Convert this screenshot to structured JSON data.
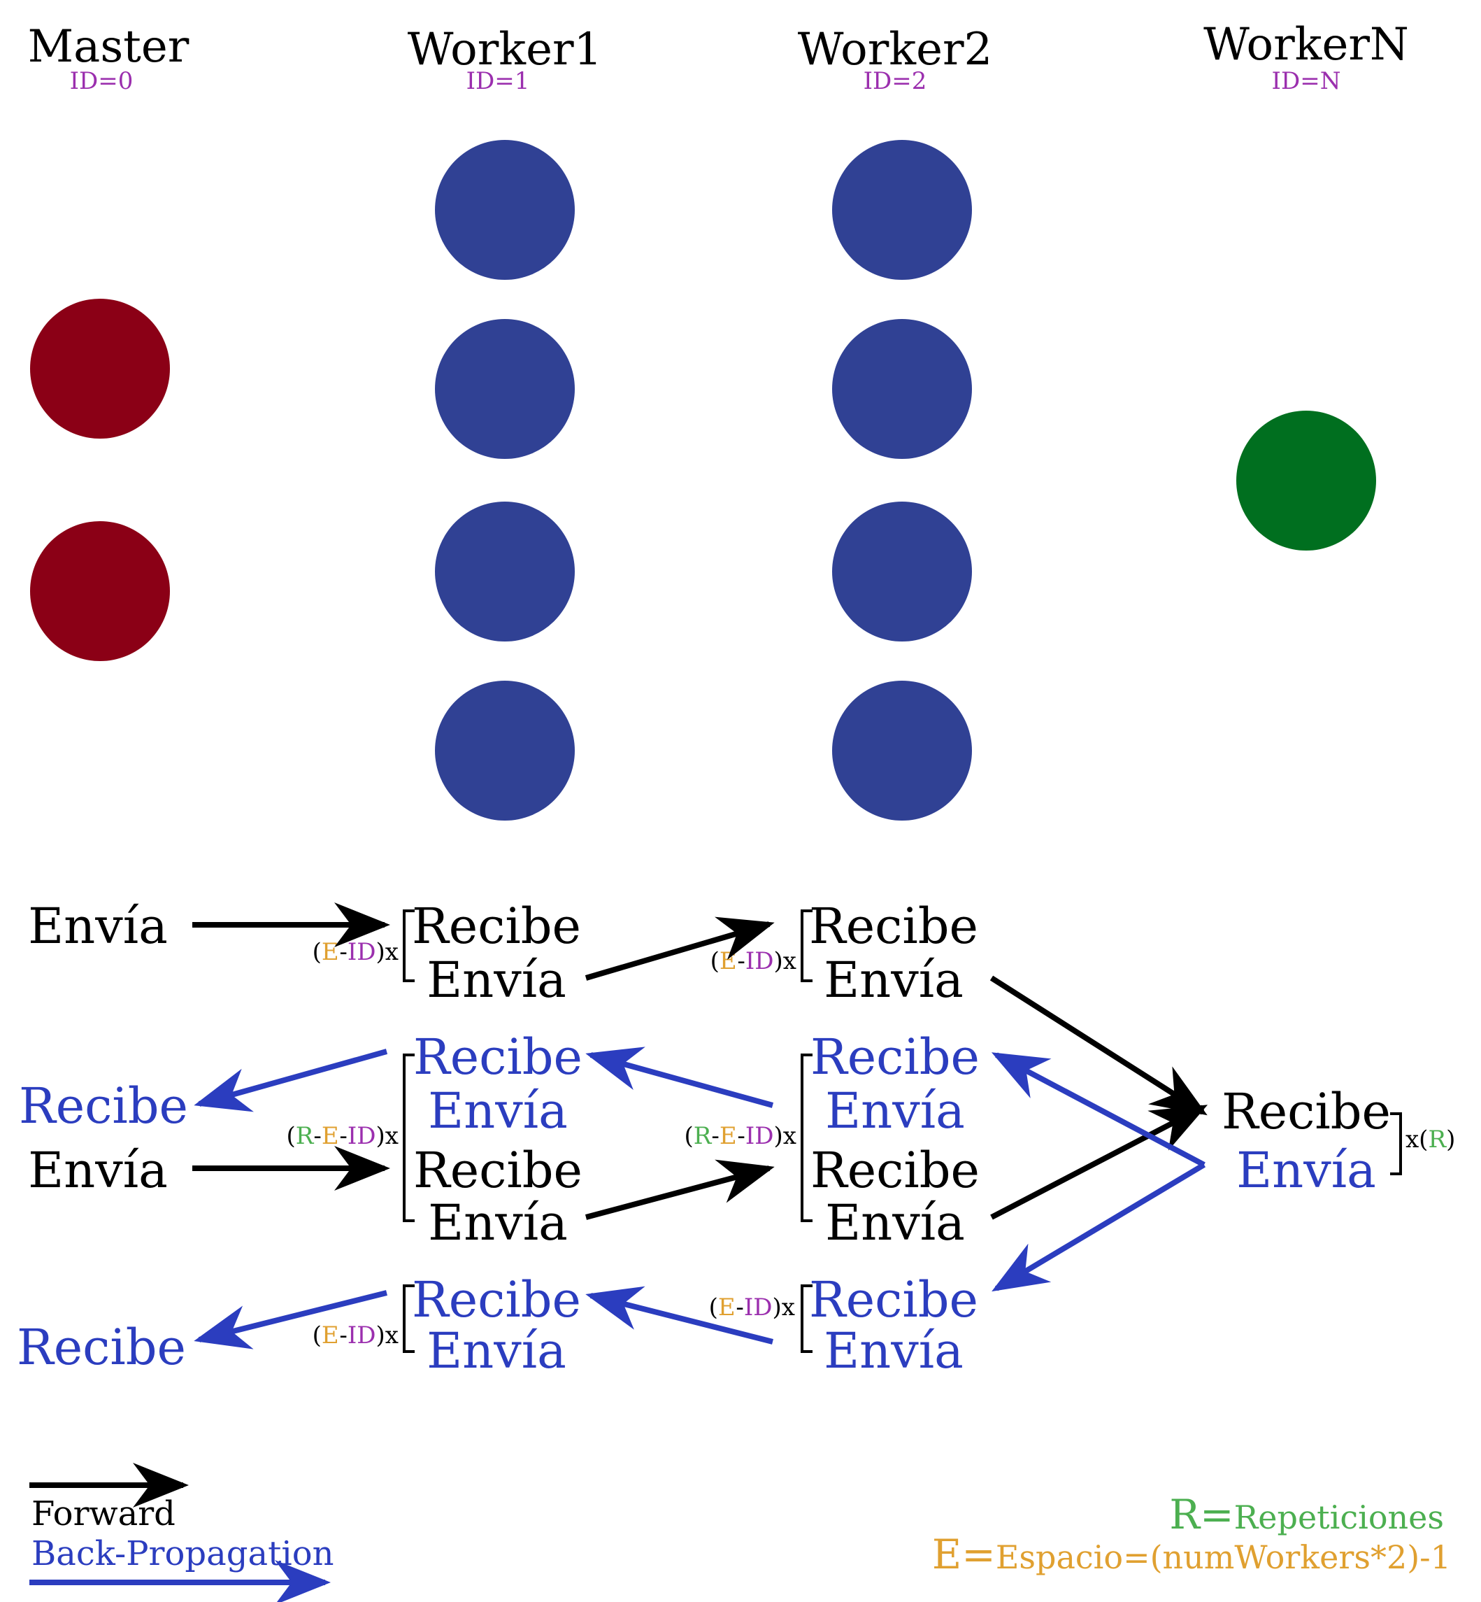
{
  "columns": [
    {
      "title": "Master",
      "id_label": "ID=0"
    },
    {
      "title": "Worker1",
      "id_label": "ID=1"
    },
    {
      "title": "Worker2",
      "id_label": "ID=2"
    },
    {
      "title": "WorkerN",
      "id_label": "ID=N"
    }
  ],
  "nodes": {
    "master_count": 2,
    "worker1_count": 4,
    "worker2_count": 4,
    "workerN_count": 1,
    "colors": {
      "master": "#8b0016",
      "worker": "#304194",
      "workerN": "#006f1f"
    }
  },
  "labels": {
    "envia": "Envía",
    "recibe": "Recibe"
  },
  "multipliers": {
    "open_paren": "(",
    "close_paren_x": ")x",
    "dash": "-",
    "E": "E",
    "ID": "ID",
    "R": "R",
    "tail_x": "x(",
    "tail_close": ")"
  },
  "legend": {
    "forward": "Forward",
    "backprop": "Back-Propagation",
    "R_symbol": "R=",
    "R_text": "Repeticiones",
    "E_symbol": "E=",
    "E_text": "Espacio=(numWorkers*2)-1"
  },
  "colors": {
    "black": "#000000",
    "blue": "#2b3dbf",
    "green": "#4caf50",
    "orange": "#e0a030",
    "purple": "#9b2fae"
  }
}
